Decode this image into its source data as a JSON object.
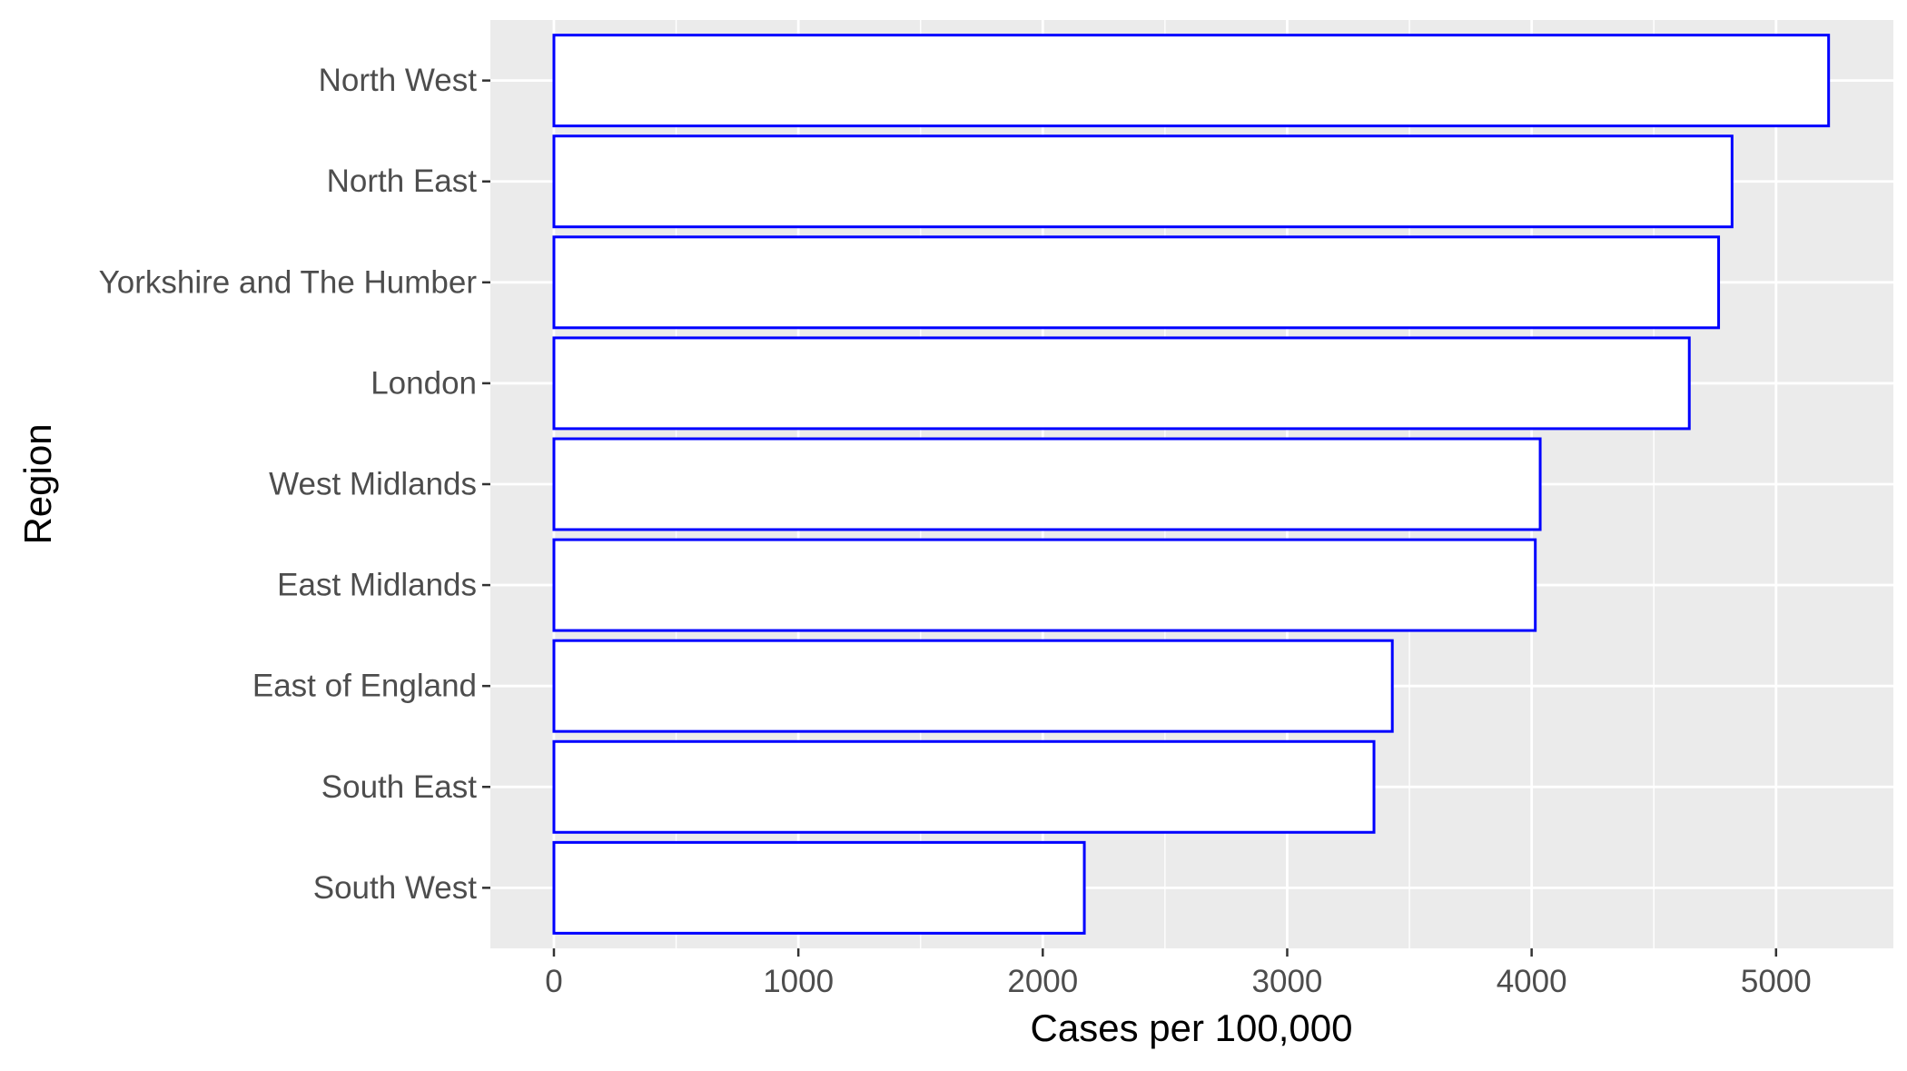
{
  "chart_data": {
    "type": "bar",
    "orientation": "horizontal",
    "title": "",
    "xlabel": "Cases per 100,000",
    "ylabel": "Region",
    "categories": [
      "South West",
      "South East",
      "East of England",
      "East Midlands",
      "West Midlands",
      "London",
      "Yorkshire and The Humber",
      "North East",
      "North West"
    ],
    "values": [
      2170,
      3355,
      3430,
      4015,
      4035,
      4645,
      4765,
      4820,
      5215
    ],
    "xlim": [
      -260,
      5480
    ],
    "xticks": [
      0,
      1000,
      2000,
      3000,
      4000,
      5000
    ],
    "xtick_labels": [
      "0",
      "1000",
      "2000",
      "3000",
      "4000",
      "5000"
    ],
    "grid": true,
    "legend": "none",
    "colors": {
      "panel_background": "#EBEBEB",
      "grid_major": "#FFFFFF",
      "bar_fill": "#FFFFFF",
      "bar_outline": "#0000FF",
      "tick_label": "#4D4D4D",
      "axis_title": "#000000",
      "tick_mark": "#333333"
    }
  }
}
